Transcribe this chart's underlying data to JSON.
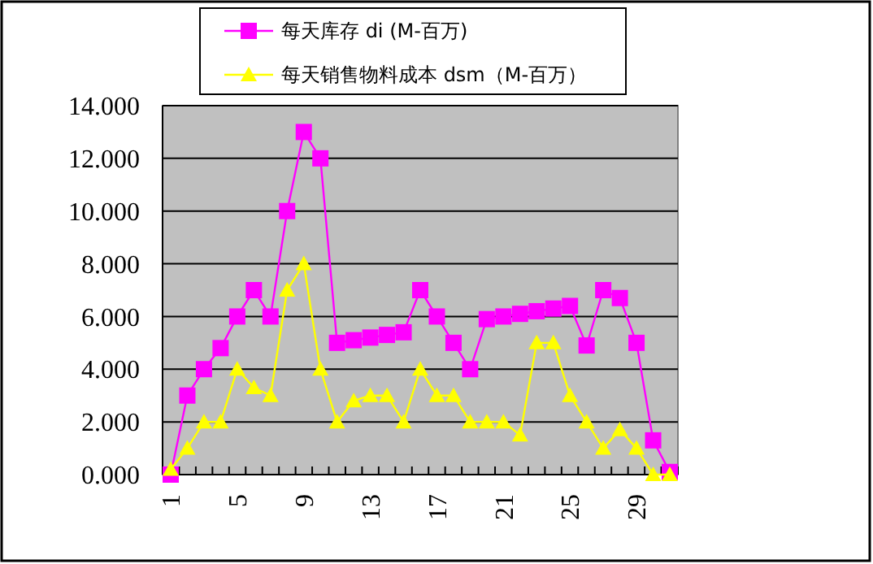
{
  "chart_data": {
    "type": "line",
    "categories": [
      "1",
      null,
      null,
      null,
      "5",
      null,
      null,
      null,
      "9",
      null,
      null,
      null,
      "13",
      null,
      null,
      null,
      "17",
      null,
      null,
      null,
      "21",
      null,
      null,
      null,
      "25",
      null,
      null,
      null,
      "29",
      null,
      null
    ],
    "series": [
      {
        "name": "每天库存 di (M-百万)",
        "color": "#ff00ff",
        "marker": "square",
        "values": [
          0,
          3,
          4,
          4.8,
          6,
          7,
          6,
          10,
          13,
          12,
          5,
          5.1,
          5.2,
          5.3,
          5.4,
          7,
          6,
          5,
          4,
          5.9,
          6,
          6.1,
          6.2,
          6.3,
          6.4,
          4.9,
          7,
          6.7,
          5,
          1.3,
          0.1
        ]
      },
      {
        "name": "每天销售物料成本 dsm（M-百万）",
        "color": "#ffff00",
        "marker": "triangle",
        "values": [
          0.2,
          1,
          2,
          2,
          4,
          3.3,
          3,
          7,
          8,
          4,
          2,
          2.8,
          3,
          3,
          2,
          4,
          3,
          3,
          2,
          2,
          2,
          1.5,
          5,
          5,
          3,
          2,
          1,
          1.7,
          1,
          0,
          0
        ]
      }
    ],
    "ylim": [
      0,
      14
    ],
    "yticks": [
      {
        "value": 0,
        "label": "0.000"
      },
      {
        "value": 2,
        "label": "2.000"
      },
      {
        "value": 4,
        "label": "4.000"
      },
      {
        "value": 6,
        "label": "6.000"
      },
      {
        "value": 8,
        "label": "8.000"
      },
      {
        "value": 10,
        "label": "10.000"
      },
      {
        "value": 12,
        "label": "12.000"
      },
      {
        "value": 14,
        "label": "14.000"
      }
    ],
    "grid": "y",
    "legend": "top"
  }
}
